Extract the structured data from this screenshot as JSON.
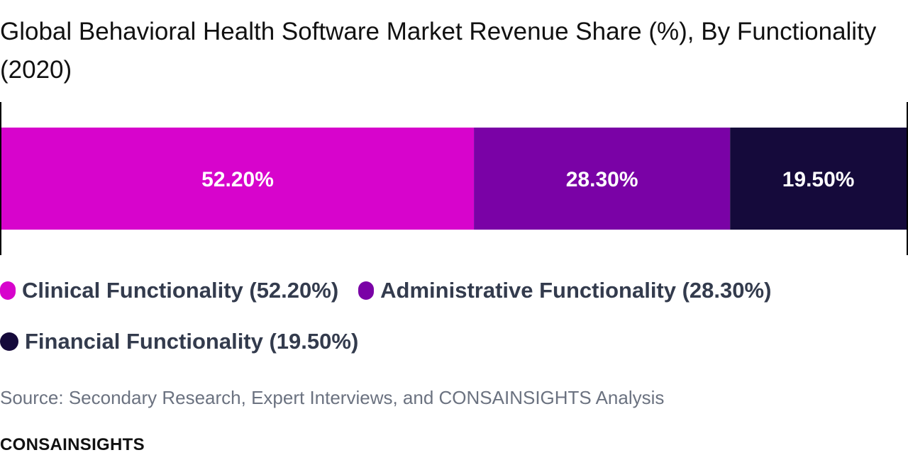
{
  "chart_data": {
    "type": "bar",
    "orientation": "horizontal-stacked-100",
    "title": "Global Behavioral Health Software Market Revenue Share (%), By Functionality (2020)",
    "unit": "%",
    "series": [
      {
        "name": "Clinical Functionality",
        "value": 52.2,
        "display": "52.20%",
        "legend": "Clinical Functionality (52.20%)",
        "color": "#d704cc"
      },
      {
        "name": "Administrative Functionality",
        "value": 28.3,
        "display": "28.30%",
        "legend": "Administrative Functionality (28.30%)",
        "color": "#7a02a6"
      },
      {
        "name": "Financial Functionality",
        "value": 19.5,
        "display": "19.50%",
        "legend": "Financial Functionality (19.50%)",
        "color": "#150a3b"
      }
    ],
    "total": 100,
    "legend_position": "bottom"
  },
  "source": "Source: Secondary Research, Expert Interviews, and CONSAINSIGHTS Analysis",
  "brand": "CONSAINSIGHTS"
}
